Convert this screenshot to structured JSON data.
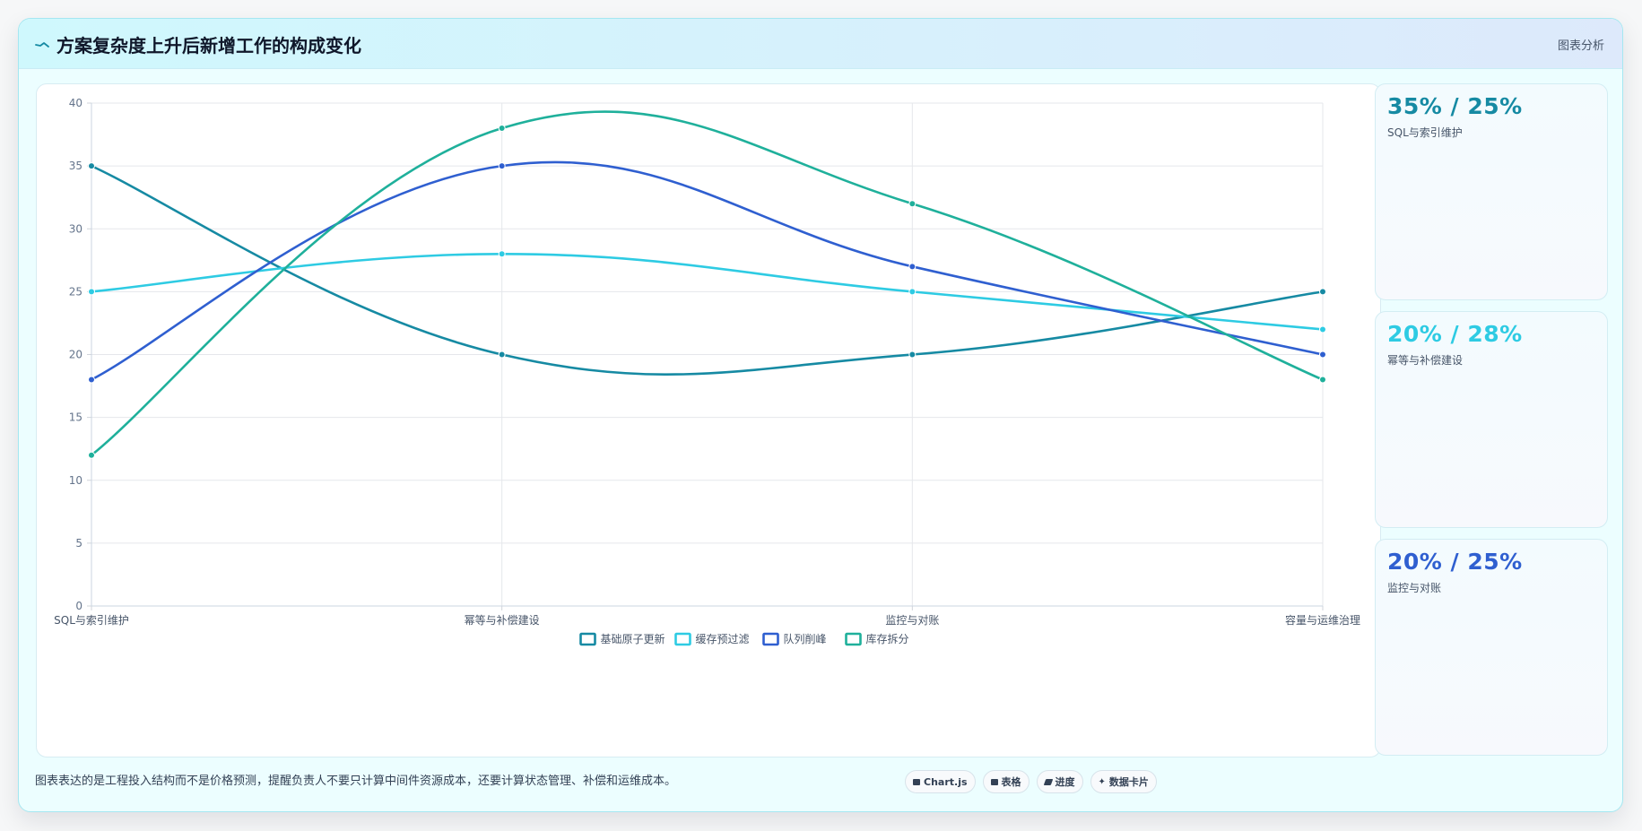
{
  "header": {
    "title": "方案复杂度上升后新增工作的构成变化",
    "tag": "图表分析"
  },
  "chart_data": {
    "type": "line",
    "categories": [
      "SQL与索引维护",
      "幂等与补偿建设",
      "监控与对账",
      "容量与运维治理"
    ],
    "ylim": [
      0,
      40
    ],
    "yticks": [
      0,
      5,
      10,
      15,
      20,
      25,
      30,
      35,
      40
    ],
    "grid": true,
    "legend_position": "bottom",
    "series": [
      {
        "name": "基础原子更新",
        "color": "#168aa3",
        "values": [
          35,
          20,
          20,
          25
        ]
      },
      {
        "name": "缓存预过滤",
        "color": "#2ecbe3",
        "values": [
          25,
          28,
          25,
          22
        ]
      },
      {
        "name": "队列削峰",
        "color": "#2f5fd0",
        "values": [
          18,
          35,
          27,
          20
        ]
      },
      {
        "name": "库存拆分",
        "color": "#1fb09b",
        "values": [
          12,
          38,
          32,
          18
        ]
      }
    ]
  },
  "side_cards": [
    {
      "value": "35% / 25%",
      "label": "SQL与索引维护",
      "color": "#168aa3"
    },
    {
      "value": "20% / 28%",
      "label": "幂等与补偿建设",
      "color": "#2ecbe3"
    },
    {
      "value": "20% / 25%",
      "label": "监控与对账",
      "color": "#2f5fd0"
    }
  ],
  "footer": {
    "note": "图表表达的是工程投入结构而不是价格预测，提醒负责人不要只计算中间件资源成本，还要计算状态管理、补偿和运维成本。",
    "pills": [
      {
        "icon": "chart-icon",
        "label": "Chart.js"
      },
      {
        "icon": "table-icon",
        "label": "表格"
      },
      {
        "icon": "progress-icon",
        "label": "进度"
      },
      {
        "icon": "sparkle-icon",
        "label": "数据卡片"
      }
    ]
  }
}
